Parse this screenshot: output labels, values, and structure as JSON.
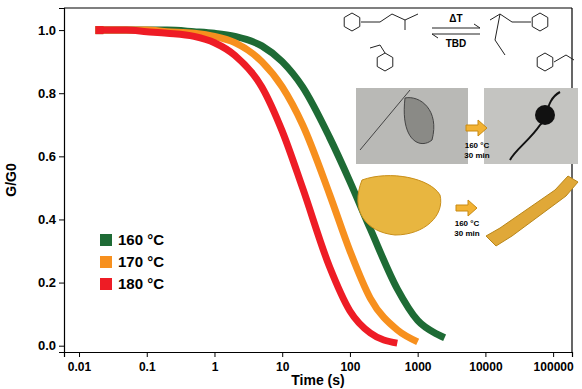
{
  "chart_data": {
    "type": "line",
    "x_label": "Time (s)",
    "y_label": "G/G0",
    "log": "x",
    "legend": "lower left",
    "marker": "square",
    "line_style": "solid",
    "xlim": [
      0.006,
      190000
    ],
    "xticks": [
      0.01,
      0.1,
      1,
      10,
      100,
      1000,
      10000,
      100000
    ],
    "ylim": [
      -0.02,
      1.07
    ],
    "yticks": [
      {
        "value": 0,
        "label": "0.0"
      },
      {
        "value": 0.2,
        "label": "0.2"
      },
      {
        "value": 0.4,
        "label": "0.4"
      },
      {
        "value": 0.6,
        "label": "0.6"
      },
      {
        "value": 0.8,
        "label": "0.8"
      },
      {
        "value": 1,
        "label": "1.0"
      }
    ],
    "x": [
      0.02,
      0.05,
      0.1,
      0.2,
      0.5,
      1,
      2,
      5,
      10,
      20,
      50,
      100,
      200,
      500,
      1000,
      2000,
      2500
    ],
    "series": [
      {
        "name": "160 °C",
        "color": "#1e6b35",
        "values": [
          1.0,
          1.0,
          1.0,
          1.0,
          0.995,
          0.99,
          0.98,
          0.95,
          0.9,
          0.82,
          0.66,
          0.52,
          0.37,
          0.18,
          0.08,
          0.035,
          0.025
        ]
      },
      {
        "name": "170 °C",
        "color": "#f7901e",
        "values": [
          1.0,
          1.0,
          1.0,
          0.995,
          0.99,
          0.98,
          0.96,
          0.9,
          0.82,
          0.7,
          0.48,
          0.3,
          0.15,
          0.05,
          0.012,
          null,
          null
        ]
      },
      {
        "name": "180 °C",
        "color": "#ee1c25",
        "values": [
          1.0,
          1.0,
          0.995,
          0.99,
          0.98,
          0.96,
          0.92,
          0.82,
          0.68,
          0.5,
          0.25,
          0.11,
          0.04,
          0.008,
          null,
          null,
          null
        ]
      }
    ],
    "annotations": [
      "ΔT",
      "TBD",
      "160 °C",
      "30 min",
      "160 °C",
      "30 min"
    ]
  }
}
